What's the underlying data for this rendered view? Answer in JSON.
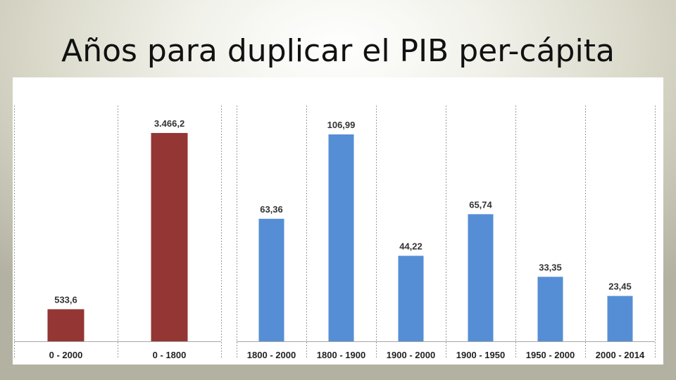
{
  "slide": {
    "title": "Años para duplicar el PIB per-cápita"
  },
  "chart_data": [
    {
      "type": "bar",
      "categories": [
        "0 - 2000",
        "0 - 1800"
      ],
      "values": [
        533.6,
        3466.2
      ],
      "value_labels": [
        "533,6",
        "3.466,2"
      ],
      "ylim": [
        0,
        3700
      ],
      "color": "#943634",
      "grid": false
    },
    {
      "type": "bar",
      "categories": [
        "1800 - 2000",
        "1800 - 1900",
        "1900 - 2000",
        "1900 - 1950",
        "1950 - 2000",
        "2000 - 2014"
      ],
      "values": [
        63.36,
        106.99,
        44.22,
        65.74,
        33.35,
        23.45
      ],
      "value_labels": [
        "63,36",
        "106,99",
        "44,22",
        "65,74",
        "33,35",
        "23,45"
      ],
      "ylim": [
        0,
        115
      ],
      "color": "#558ed5",
      "grid": false
    }
  ]
}
